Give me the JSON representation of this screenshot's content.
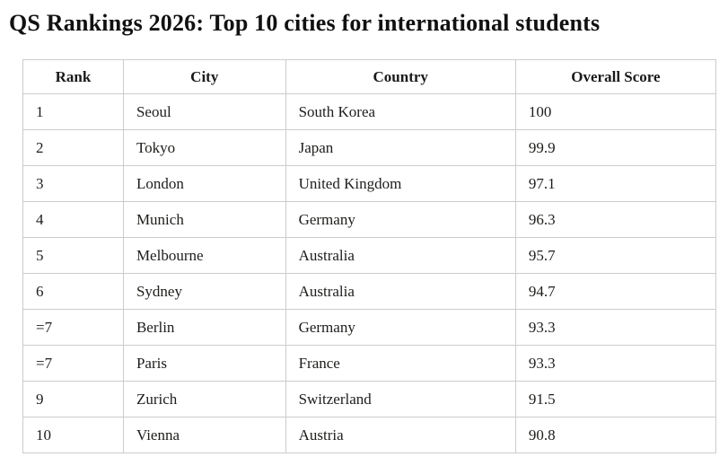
{
  "page": {
    "title": "QS Rankings 2026: Top 10 cities for international students"
  },
  "colors": {
    "background": "#ffffff",
    "table_border": "#cccccc",
    "text": "#1d1d1b",
    "title_text": "#111111"
  },
  "table": {
    "columns": [
      "Rank",
      "City",
      "Country",
      "Overall Score"
    ],
    "rows": [
      {
        "rank": "1",
        "city": "Seoul",
        "country": "South Korea",
        "score": "100"
      },
      {
        "rank": "2",
        "city": "Tokyo",
        "country": "Japan",
        "score": "99.9"
      },
      {
        "rank": "3",
        "city": "London",
        "country": "United Kingdom",
        "score": "97.1"
      },
      {
        "rank": "4",
        "city": "Munich",
        "country": "Germany",
        "score": "96.3"
      },
      {
        "rank": "5",
        "city": "Melbourne",
        "country": "Australia",
        "score": "95.7"
      },
      {
        "rank": "6",
        "city": "Sydney",
        "country": "Australia",
        "score": "94.7"
      },
      {
        "rank": "=7",
        "city": "Berlin",
        "country": "Germany",
        "score": "93.3"
      },
      {
        "rank": "=7",
        "city": "Paris",
        "country": "France",
        "score": "93.3"
      },
      {
        "rank": "9",
        "city": "Zurich",
        "country": "Switzerland",
        "score": "91.5"
      },
      {
        "rank": "10",
        "city": "Vienna",
        "country": "Austria",
        "score": "90.8"
      }
    ]
  },
  "chart_data": {
    "type": "table",
    "title": "QS Rankings 2026: Top 10 cities for international students",
    "columns": [
      "Rank",
      "City",
      "Country",
      "Overall Score"
    ],
    "rows": [
      [
        "1",
        "Seoul",
        "South Korea",
        100
      ],
      [
        "2",
        "Tokyo",
        "Japan",
        99.9
      ],
      [
        "3",
        "London",
        "United Kingdom",
        97.1
      ],
      [
        "4",
        "Munich",
        "Germany",
        96.3
      ],
      [
        "5",
        "Melbourne",
        "Australia",
        95.7
      ],
      [
        "6",
        "Sydney",
        "Australia",
        94.7
      ],
      [
        "=7",
        "Berlin",
        "Germany",
        93.3
      ],
      [
        "=7",
        "Paris",
        "France",
        93.3
      ],
      [
        "9",
        "Zurich",
        "Switzerland",
        91.5
      ],
      [
        "10",
        "Vienna",
        "Austria",
        90.8
      ]
    ]
  }
}
